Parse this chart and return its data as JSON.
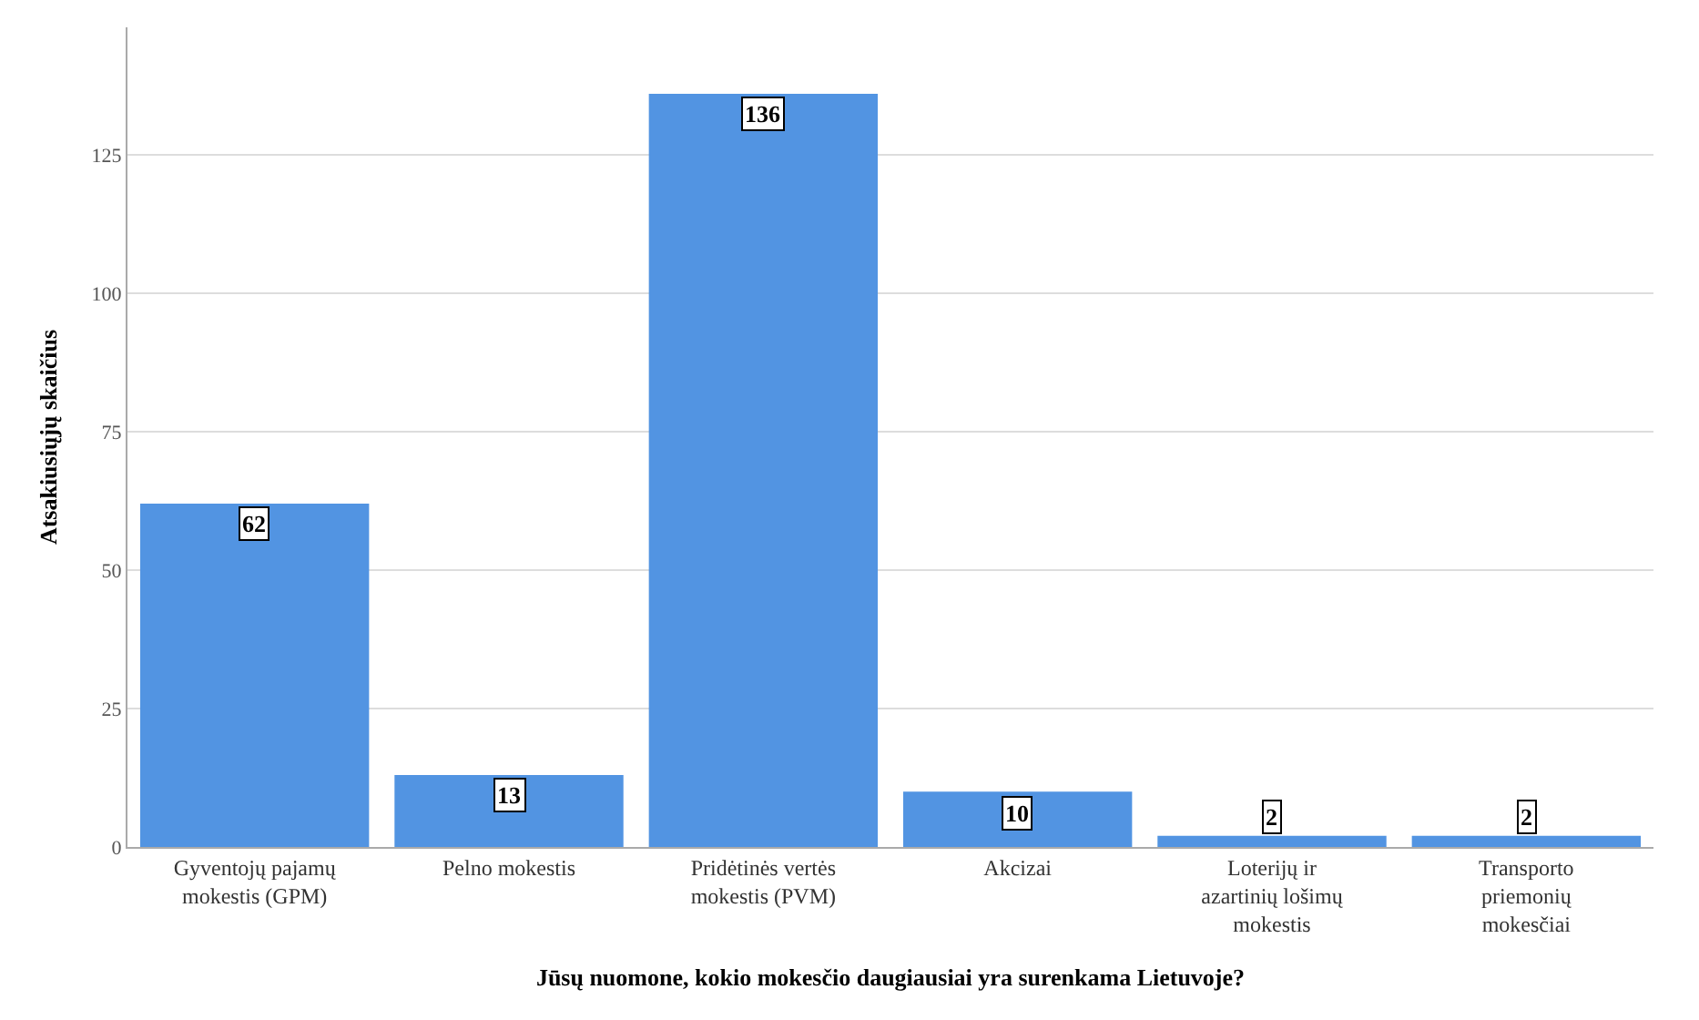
{
  "chart_data": {
    "type": "bar",
    "xlabel": "Jūsų nuomone, kokio mokesčio daugiausiai yra surenkama Lietuvoje?",
    "ylabel": "Atsakiusiųjų skaičius",
    "categories": [
      "Gyventojų pajamų mokestis (GPM)",
      "Pelno mokestis",
      "Pridėtinės vertės mokestis (PVM)",
      "Akcizai",
      "Loterijų ir azartinių lošimų mokestis",
      "Transporto priemonių mokesčiai"
    ],
    "values": [
      62,
      13,
      136,
      10,
      2,
      2
    ],
    "color": "#5294e2",
    "ylim": [
      0,
      148
    ],
    "yticks": [
      0,
      25,
      50,
      75,
      100,
      125
    ],
    "grid": "y",
    "data_labels": true
  }
}
